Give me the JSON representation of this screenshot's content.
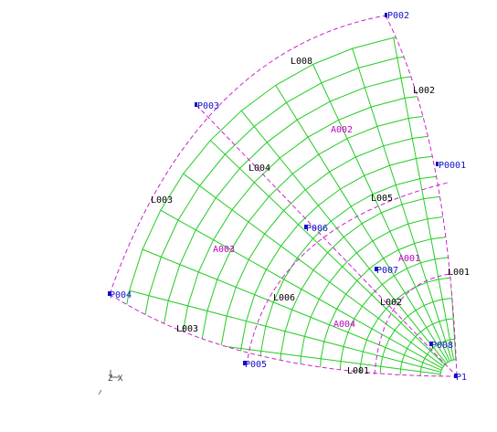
{
  "colors": {
    "background": "#ffffff",
    "mesh": "#22cc22",
    "boundary": "#cc22cc",
    "point": "#1010c8",
    "line_label": "#000000",
    "surface_label": "#c000c0"
  },
  "points": {
    "p1": "P1",
    "p2": "P002",
    "p3": "P003",
    "p4": "P004",
    "p5": "P005",
    "p6": "P006",
    "p7": "P007",
    "p8": "P008",
    "p9": "P0001",
    "p10": "P003"
  },
  "lines": {
    "l1": "L001",
    "l2": "L002",
    "l3": "L004",
    "l4": "L003",
    "l5": "L005",
    "l6": "L005",
    "l7": "L002",
    "l8": "L003",
    "l9": "L006",
    "l10": "L001",
    "l11": "L008"
  },
  "surfaces": {
    "s1": "A002",
    "s2": "A001",
    "s3": "A003",
    "s4": "A004"
  },
  "triad": {
    "axis_label": "Z X"
  }
}
